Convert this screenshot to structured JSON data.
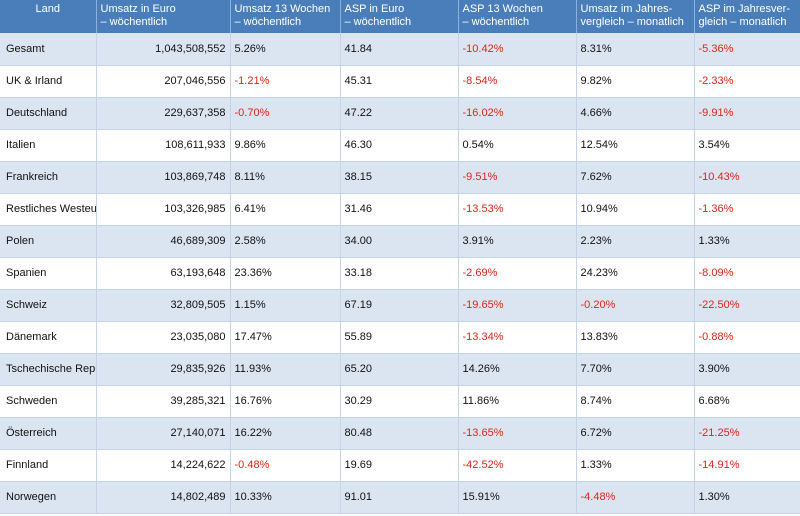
{
  "headers": [
    "Land",
    "Umsatz in Euro\n– wöchentlich",
    "Umsatz 13 Wochen\n– wöchentlich",
    "ASP in Euro\n– wöchentlich",
    "ASP 13 Wochen\n– wöchentlich",
    "Umsatz im Jahres-\nvergleich – monatlich",
    "ASP im Jahresver-\ngleich – monatlich"
  ],
  "rows": [
    [
      "Gesamt",
      "1,043,508,552",
      "5.26%",
      "41.84",
      "-10.42%",
      "8.31%",
      "-5.36%"
    ],
    [
      "UK & Irland",
      "207,046,556",
      "-1.21%",
      "45.31",
      "-8.54%",
      "9.82%",
      "-2.33%"
    ],
    [
      "Deutschland",
      "229,637,358",
      "-0.70%",
      "47.22",
      "-16.02%",
      "4.66%",
      "-9.91%"
    ],
    [
      "Italien",
      "108,611,933",
      "9.86%",
      "46.30",
      "0.54%",
      "12.54%",
      "3.54%"
    ],
    [
      "Frankreich",
      "103,869,748",
      "8.11%",
      "38.15",
      "-9.51%",
      "7.62%",
      "-10.43%"
    ],
    [
      "Restliches Westeuropa",
      "103,326,985",
      "6.41%",
      "31.46",
      "-13.53%",
      "10.94%",
      "-1.36%"
    ],
    [
      "Polen",
      "46,689,309",
      "2.58%",
      "34.00",
      "3.91%",
      "2.23%",
      "1.33%"
    ],
    [
      "Spanien",
      "63,193,648",
      "23.36%",
      "33.18",
      "-2.69%",
      "24.23%",
      "-8.09%"
    ],
    [
      "Schweiz",
      "32,809,505",
      "1.15%",
      "67.19",
      "-19.65%",
      "-0.20%",
      "-22.50%"
    ],
    [
      "Dänemark",
      "23,035,080",
      "17.47%",
      "55.89",
      "-13.34%",
      "13.83%",
      "-0.88%"
    ],
    [
      "Tschechische Republik",
      "29,835,926",
      "11.93%",
      "65.20",
      "14.26%",
      "7.70%",
      "3.90%"
    ],
    [
      "Schweden",
      "39,285,321",
      "16.76%",
      "30.29",
      "11.86%",
      "8.74%",
      "6.68%"
    ],
    [
      "Österreich",
      "27,140,071",
      "16.22%",
      "80.48",
      "-13.65%",
      "6.72%",
      "-21.25%"
    ],
    [
      "Finnland",
      "14,224,622",
      "-0.48%",
      "19.69",
      "-42.52%",
      "1.33%",
      "-14.91%"
    ],
    [
      "Norwegen",
      "14,802,489",
      "10.33%",
      "91.01",
      "15.91%",
      "-4.48%",
      "1.30%"
    ]
  ],
  "colors": {
    "header_bg": "#4a7ebb",
    "stripe": "#dbe5f1",
    "negative": "#e0221b"
  }
}
